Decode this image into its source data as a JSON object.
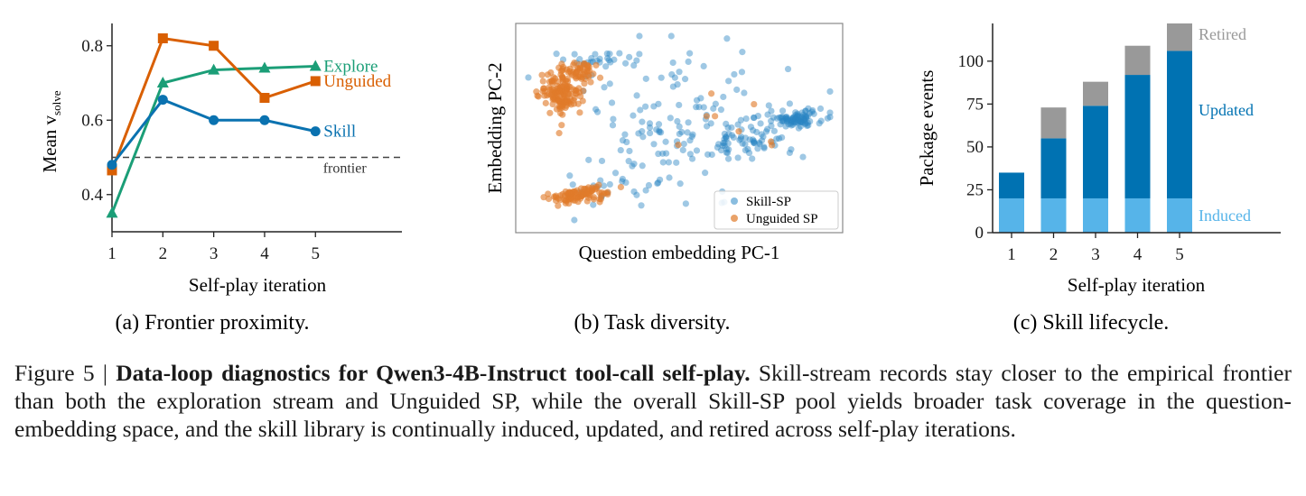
{
  "figure": {
    "subcaptions": {
      "a": "(a) Frontier proximity.",
      "b": "(b) Task diversity.",
      "c": "(c) Skill lifecycle."
    },
    "caption": {
      "label": "Figure 5 | ",
      "bold": "Data-loop diagnostics for Qwen3-4B-Instruct tool-call self-play.",
      "text": " Skill-stream records stay closer to the empirical frontier than both the exploration stream and Unguided SP, while the overall Skill-SP pool yields broader task coverage in the question-embedding space, and the skill library is continually induced, updated, and retired across self-play iterations."
    }
  },
  "chart_data": [
    {
      "type": "line",
      "xlabel": "Self-play iteration",
      "ylabel": "Mean v",
      "ylabel_subscript": "solve",
      "x": [
        1,
        2,
        3,
        4,
        5
      ],
      "xlim": [
        1,
        6.7
      ],
      "ylim": [
        0.3,
        0.86
      ],
      "yticks": [
        0.4,
        0.6,
        0.8
      ],
      "ytick_labels": [
        "0.4",
        "0.6",
        "0.8"
      ],
      "xticks": [
        1,
        2,
        3,
        4,
        5
      ],
      "xtick_labels": [
        "1",
        "2",
        "3",
        "4",
        "5"
      ],
      "reference_line": {
        "y": 0.5,
        "label": "frontier",
        "style": "dashed",
        "color": "#444444"
      },
      "series": [
        {
          "name": "Explore",
          "values": [
            0.35,
            0.7,
            0.735,
            0.74,
            0.745
          ],
          "color": "#1b9e77",
          "marker": "triangle"
        },
        {
          "name": "Unguided",
          "values": [
            0.465,
            0.82,
            0.8,
            0.66,
            0.705
          ],
          "color": "#d95f02",
          "marker": "square"
        },
        {
          "name": "Skill",
          "values": [
            0.48,
            0.655,
            0.6,
            0.6,
            0.57
          ],
          "color": "#0a72b0",
          "marker": "circle"
        }
      ],
      "grid": false
    },
    {
      "type": "scatter",
      "xlabel": "Question embedding PC-1",
      "ylabel": "Embedding PC-2",
      "xlim": [
        -1,
        1
      ],
      "ylim": [
        -1,
        1
      ],
      "ticks_hidden": true,
      "legend_position": "lower-right",
      "series": [
        {
          "name": "Skill-SP",
          "color": "#2a86c4",
          "clusters": [
            {
              "center": [
                0.78,
                0.1
              ],
              "spread": [
                0.09,
                0.05
              ],
              "count": 90
            },
            {
              "center": [
                0.45,
                -0.12
              ],
              "spread": [
                0.16,
                0.13
              ],
              "count": 70
            },
            {
              "center": [
                -0.1,
                -0.15
              ],
              "spread": [
                0.22,
                0.28
              ],
              "count": 80
            },
            {
              "center": [
                -0.52,
                0.72
              ],
              "spread": [
                0.14,
                0.07
              ],
              "count": 30
            },
            {
              "center": [
                -0.5,
                -0.65
              ],
              "spread": [
                0.12,
                0.07
              ],
              "count": 15
            },
            {
              "center": [
                0.05,
                0.45
              ],
              "spread": [
                0.35,
                0.3
              ],
              "count": 45
            }
          ]
        },
        {
          "name": "Unguided SP",
          "color": "#e07b2a",
          "clusters": [
            {
              "center": [
                -0.78,
                0.35
              ],
              "spread": [
                0.07,
                0.1
              ],
              "count": 130
            },
            {
              "center": [
                -0.68,
                0.6
              ],
              "spread": [
                0.07,
                0.07
              ],
              "count": 60
            },
            {
              "center": [
                -0.7,
                -0.74
              ],
              "spread": [
                0.08,
                0.04
              ],
              "count": 70
            },
            {
              "center": [
                -0.55,
                -0.68
              ],
              "spread": [
                0.06,
                0.04
              ],
              "count": 25
            },
            {
              "center": [
                0.4,
                -0.05
              ],
              "spread": [
                0.2,
                0.15
              ],
              "count": 8
            }
          ]
        }
      ],
      "grid": false
    },
    {
      "type": "bar",
      "stacked": true,
      "xlabel": "Self-play iteration",
      "ylabel": "Package events",
      "categories": [
        "1",
        "2",
        "3",
        "4",
        "5"
      ],
      "ylim": [
        0,
        122
      ],
      "yticks": [
        0,
        25,
        50,
        75,
        100
      ],
      "ytick_labels": [
        "0",
        "25",
        "50",
        "75",
        "100"
      ],
      "series": [
        {
          "name": "Induced",
          "values": [
            20,
            20,
            20,
            20,
            20
          ],
          "color": "#56b4e9"
        },
        {
          "name": "Updated",
          "values": [
            15,
            35,
            54,
            72,
            86
          ],
          "color": "#0072b2"
        },
        {
          "name": "Retired",
          "values": [
            0,
            18,
            14,
            17,
            16
          ],
          "color": "#999999"
        }
      ],
      "grid": false
    }
  ]
}
